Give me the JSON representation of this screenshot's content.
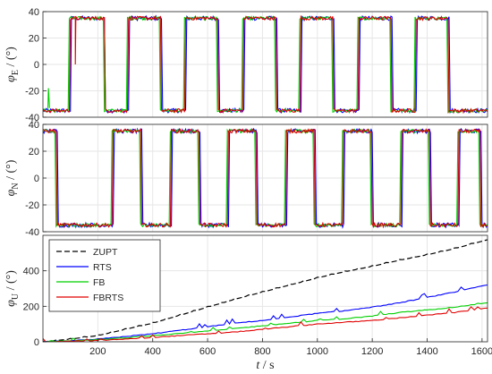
{
  "chart_data": [
    {
      "type": "line",
      "ylabel": {
        "sym": "φ",
        "sub": "E",
        "rest": " / (°)"
      },
      "xlim": [
        0,
        1620
      ],
      "ylim": [
        -40,
        40
      ],
      "yticks": [
        -40,
        -20,
        0,
        20,
        40
      ],
      "grid": true,
      "square_wave": {
        "amplitude": 35,
        "rises": [
          100,
          310,
          520,
          730,
          940,
          1150,
          1360
        ],
        "falls": [
          225,
          430,
          640,
          850,
          1060,
          1270,
          1480,
          1620
        ]
      }
    },
    {
      "type": "line",
      "ylabel": {
        "sym": "φ",
        "sub": "N",
        "rest": " / (°)"
      },
      "xlim": [
        0,
        1620
      ],
      "ylim": [
        -40,
        40
      ],
      "yticks": [
        -40,
        -20,
        0,
        20,
        40
      ],
      "grid": true,
      "square_wave": {
        "amplitude": 35,
        "start_high": true,
        "rises": [
          255,
          465,
          675,
          885,
          1095,
          1305,
          1515
        ],
        "falls": [
          50,
          150,
          360,
          570,
          780,
          990,
          1200,
          1410,
          1595
        ]
      }
    },
    {
      "type": "line",
      "ylabel": {
        "sym": "φ",
        "sub": "U",
        "rest": " / (°)"
      },
      "xlabel": {
        "sym": "t",
        "rest": " / s"
      },
      "xlim": [
        0,
        1620
      ],
      "ylim": [
        0,
        600
      ],
      "yticks": [
        0,
        200,
        400
      ],
      "xticks": [
        200,
        400,
        600,
        800,
        1000,
        1200,
        1400,
        1600
      ],
      "grid": true,
      "legend": "top-left",
      "series": [
        {
          "name": "ZUPT",
          "color": "#000000",
          "dash": true,
          "x": [
            0,
            100,
            200,
            300,
            400,
            500,
            600,
            700,
            800,
            900,
            1000,
            1100,
            1200,
            1300,
            1400,
            1500,
            1620
          ],
          "y": [
            0,
            15,
            35,
            70,
            105,
            150,
            195,
            240,
            280,
            320,
            360,
            395,
            425,
            460,
            490,
            525,
            575
          ]
        },
        {
          "name": "RTS",
          "color": "#0000ff",
          "x": [
            0,
            100,
            200,
            300,
            400,
            500,
            600,
            700,
            800,
            900,
            1000,
            1100,
            1200,
            1300,
            1400,
            1500,
            1620
          ],
          "y": [
            0,
            5,
            15,
            30,
            45,
            65,
            85,
            105,
            120,
            140,
            160,
            175,
            195,
            220,
            250,
            280,
            320
          ]
        },
        {
          "name": "FB",
          "color": "#00d000",
          "x": [
            0,
            100,
            200,
            300,
            400,
            500,
            600,
            700,
            800,
            900,
            1000,
            1100,
            1200,
            1300,
            1400,
            1500,
            1620
          ],
          "y": [
            0,
            5,
            12,
            22,
            35,
            48,
            60,
            75,
            90,
            105,
            120,
            130,
            145,
            165,
            180,
            195,
            220
          ]
        },
        {
          "name": "FBRTS",
          "color": "#e00000",
          "x": [
            0,
            100,
            200,
            300,
            400,
            500,
            600,
            700,
            800,
            900,
            1000,
            1100,
            1200,
            1300,
            1400,
            1500,
            1620
          ],
          "y": [
            0,
            3,
            8,
            15,
            25,
            35,
            45,
            55,
            70,
            85,
            100,
            110,
            120,
            135,
            150,
            165,
            190
          ]
        }
      ]
    }
  ],
  "colors": {
    "ZUPT": "#000000",
    "RTS": "#0000ff",
    "FB": "#00d000",
    "FBRTS": "#e00000"
  }
}
